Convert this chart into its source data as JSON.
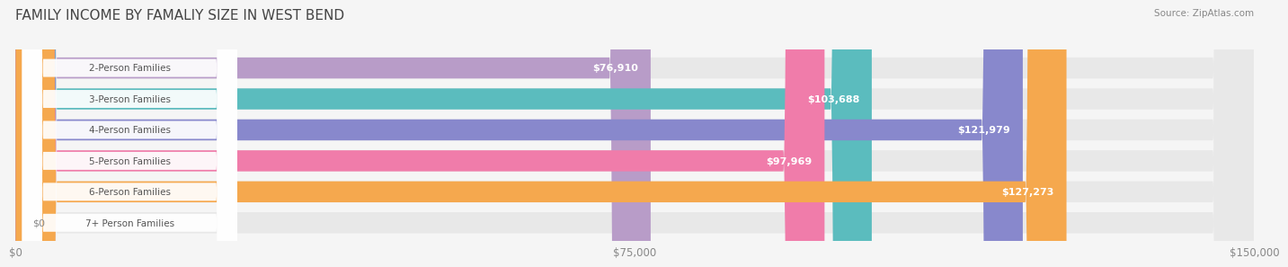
{
  "title": "FAMILY INCOME BY FAMALIY SIZE IN WEST BEND",
  "source": "Source: ZipAtlas.com",
  "categories": [
    "2-Person Families",
    "3-Person Families",
    "4-Person Families",
    "5-Person Families",
    "6-Person Families",
    "7+ Person Families"
  ],
  "values": [
    76910,
    103688,
    121979,
    97969,
    127273,
    0
  ],
  "bar_colors": [
    "#b89cc8",
    "#5bbcbe",
    "#8888cc",
    "#f07caa",
    "#f5a84e",
    "#f0a0a8"
  ],
  "bar_labels": [
    "$76,910",
    "$103,688",
    "$121,979",
    "$97,969",
    "$127,273",
    "$0"
  ],
  "xlim": [
    0,
    150000
  ],
  "xtick_values": [
    0,
    75000,
    150000
  ],
  "xtick_labels": [
    "$0",
    "$75,000",
    "$150,000"
  ],
  "background_color": "#f5f5f5",
  "bar_background_color": "#e8e8e8",
  "title_fontsize": 11,
  "bar_height": 0.68
}
